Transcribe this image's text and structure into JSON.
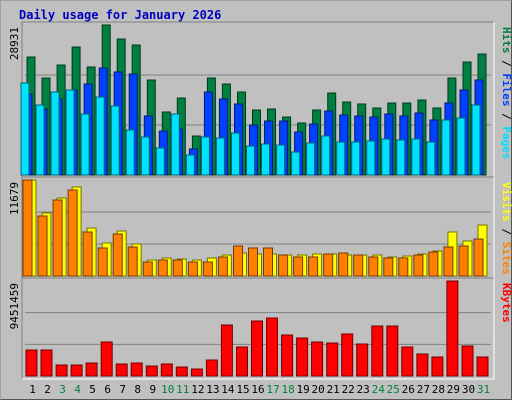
{
  "chart_data": {
    "type": "bar",
    "title": "Daily usage for January 2026",
    "days": [
      "1",
      "2",
      "3",
      "4",
      "5",
      "6",
      "7",
      "8",
      "9",
      "10",
      "11",
      "12",
      "13",
      "14",
      "15",
      "16",
      "17",
      "18",
      "19",
      "20",
      "21",
      "22",
      "23",
      "24",
      "25",
      "26",
      "27",
      "28",
      "29",
      "30",
      "31"
    ],
    "weekend_days": [
      "3",
      "4",
      "10",
      "11",
      "17",
      "18",
      "24",
      "25",
      "31"
    ],
    "colors": {
      "hits": "#008040",
      "files": "#0040ff",
      "pages": "#00e0ff",
      "visits": "#ffff00",
      "sites": "#ff8000",
      "kbytes": "#ff0000",
      "weekday_label": "#000000",
      "weekend_label": "#008040",
      "title": "#0000c0"
    },
    "panels": [
      {
        "id": "hits-panel",
        "max_label": "28931",
        "max": 28931,
        "series": [
          {
            "key": "hits",
            "values": [
              22700,
              18700,
              21200,
              24700,
              20900,
              28931,
              26300,
              25000,
              18300,
              12200,
              14900,
              7500,
              18700,
              17600,
              16000,
              12500,
              12800,
              11200,
              10100,
              12500,
              15900,
              14100,
              13700,
              13000,
              13800,
              13900,
              14400,
              12900,
              18800,
              21700,
              23300
            ]
          },
          {
            "key": "files",
            "values": [
              15700,
              12700,
              14700,
              16400,
              17500,
              20600,
              19900,
              19400,
              11400,
              8500,
              8800,
              5000,
              16000,
              14600,
              13700,
              9700,
              10400,
              10500,
              8200,
              9800,
              12300,
              11500,
              11300,
              11100,
              11700,
              11400,
              11900,
              10600,
              13900,
              16400,
              18300
            ]
          },
          {
            "key": "pages",
            "values": [
              17700,
              13500,
              16100,
              16300,
              11700,
              15000,
              13300,
              8700,
              7300,
              5300,
              11700,
              3800,
              7400,
              7200,
              8100,
              5600,
              6000,
              5800,
              4500,
              6100,
              7500,
              6400,
              6300,
              6500,
              6900,
              6700,
              7000,
              6400,
              10700,
              11000,
              13500
            ]
          }
        ],
        "side_labels": [
          {
            "text": "Pages",
            "key": "pages"
          },
          {
            "text": "Files",
            "key": "files"
          },
          {
            "text": "Hits",
            "key": "hits"
          }
        ],
        "separator": " / "
      },
      {
        "id": "visits-panel",
        "max_label": "11679",
        "max": 11679,
        "series": [
          {
            "key": "visits",
            "values": [
              11679,
              7700,
              9500,
              10800,
              5800,
              4000,
              5500,
              3900,
              1900,
              2200,
              2100,
              2000,
              2200,
              2500,
              2800,
              2700,
              2700,
              2600,
              2600,
              2700,
              2700,
              2500,
              2500,
              2500,
              2300,
              2400,
              2700,
              3000,
              5300,
              4300,
              6200
            ]
          },
          {
            "key": "sites",
            "values": [
              11679,
              7300,
              9200,
              10500,
              5400,
              3400,
              5100,
              3500,
              1700,
              1900,
              1900,
              1700,
              1700,
              2300,
              3700,
              3400,
              3400,
              2500,
              2300,
              2300,
              2700,
              2800,
              2600,
              2300,
              2200,
              2200,
              2600,
              2900,
              3500,
              3700,
              4500
            ]
          }
        ],
        "side_labels": [
          {
            "text": "Sites",
            "key": "sites"
          },
          {
            "text": "Visits",
            "key": "visits"
          }
        ],
        "separator": " / "
      },
      {
        "id": "kbytes-panel",
        "max_label": "9451459",
        "max": 9451459,
        "series": [
          {
            "key": "kbytes",
            "values": [
              2600000,
              2600000,
              1100000,
              1100000,
              1300000,
              3400000,
              1200000,
              1300000,
              1000000,
              1200000,
              900000,
              700000,
              1600000,
              5100000,
              2900000,
              5500000,
              5800000,
              4100000,
              3800000,
              3400000,
              3300000,
              4200000,
              3200000,
              5000000,
              5000000,
              2900000,
              2200000,
              1900000,
              9451459,
              3000000,
              1900000
            ]
          }
        ],
        "side_labels": [
          {
            "text": "KBytes",
            "key": "kbytes"
          }
        ],
        "separator": ""
      }
    ]
  }
}
